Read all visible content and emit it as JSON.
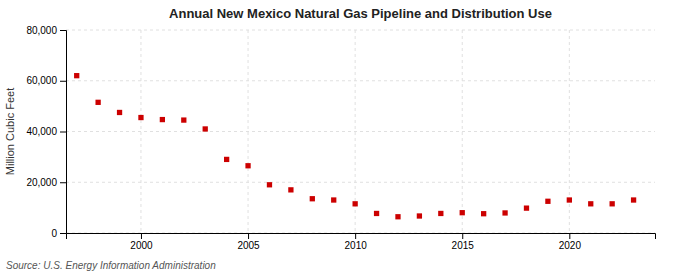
{
  "chart_data": {
    "type": "scatter",
    "title": "Annual New Mexico Natural Gas Pipeline and Distribution Use",
    "ylabel": "Million Cubic Feet",
    "annotation": "Source: U.S. Energy Information Administration",
    "color": "#cc0000",
    "marker": "square",
    "grid": true,
    "xlim": [
      1996.5,
      2024.0
    ],
    "ylim": [
      0,
      80000
    ],
    "xticks": [
      2000,
      2005,
      2010,
      2015,
      2020
    ],
    "yticks": [
      0,
      {
        "value": 20000,
        "label": "20,000"
      },
      {
        "value": 40000,
        "label": "40,000"
      },
      {
        "value": 60000,
        "label": "60,000"
      },
      {
        "value": 80000,
        "label": "80,000"
      }
    ],
    "x": [
      1997,
      1998,
      1999,
      2000,
      2001,
      2002,
      2003,
      2004,
      2005,
      2006,
      2007,
      2008,
      2009,
      2010,
      2011,
      2012,
      2013,
      2014,
      2015,
      2016,
      2017,
      2018,
      2019,
      2020,
      2021,
      2022,
      2023
    ],
    "values": [
      62000,
      51500,
      47500,
      45500,
      44700,
      44500,
      41000,
      29000,
      26500,
      19000,
      17000,
      13500,
      13000,
      11500,
      7700,
      6400,
      6700,
      7700,
      8000,
      7600,
      7900,
      9800,
      12500,
      13000,
      11500,
      11500,
      13000
    ]
  }
}
